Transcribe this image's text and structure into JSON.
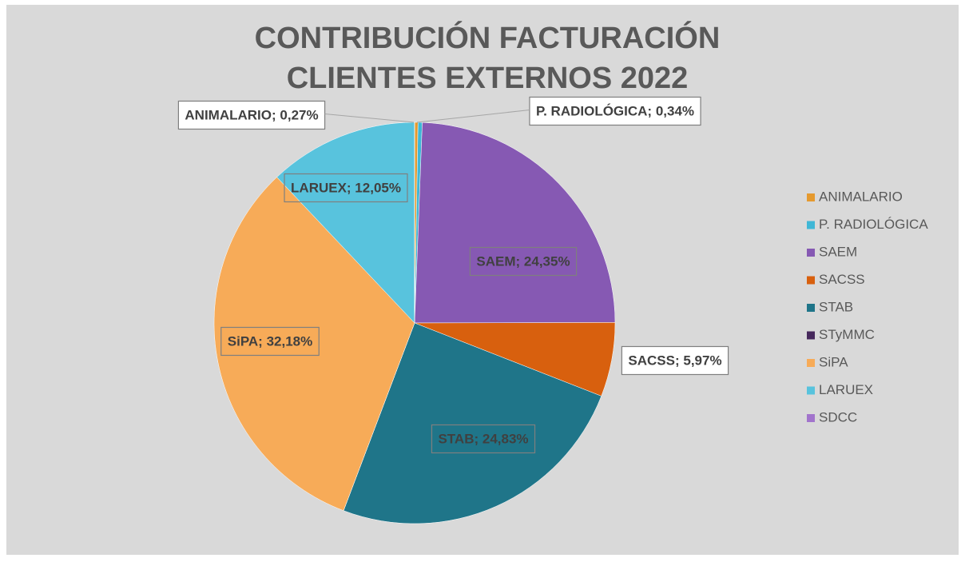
{
  "chart_data": {
    "type": "pie",
    "title": [
      "CONTRIBUCIÓN FACTURACIÓN",
      "CLIENTES EXTERNOS 2022"
    ],
    "categories": [
      "ANIMALARIO",
      "P. RADIOLÓGICA",
      "SAEM",
      "SACSS",
      "STAB",
      "STyMMC",
      "SiPA",
      "LARUEX",
      "SDCC"
    ],
    "values": [
      0.27,
      0.34,
      24.35,
      5.97,
      24.83,
      0,
      32.18,
      12.05,
      0
    ],
    "value_labels": [
      "ANIMALARIO; 0,27%",
      "P. RADIOLÓGICA; 0,34%",
      "SAEM; 24,35%",
      "SACSS; 5,97%",
      "STAB; 24,83%",
      null,
      "SiPA; 32,18%",
      "LARUEX; 12,05%",
      null
    ],
    "colors": [
      "#e59a2f",
      "#3fb7d6",
      "#8659b3",
      "#d8600e",
      "#1f7589",
      "#46285c",
      "#f7ab58",
      "#58c3dd",
      "#a274cc"
    ],
    "legend": "right"
  }
}
